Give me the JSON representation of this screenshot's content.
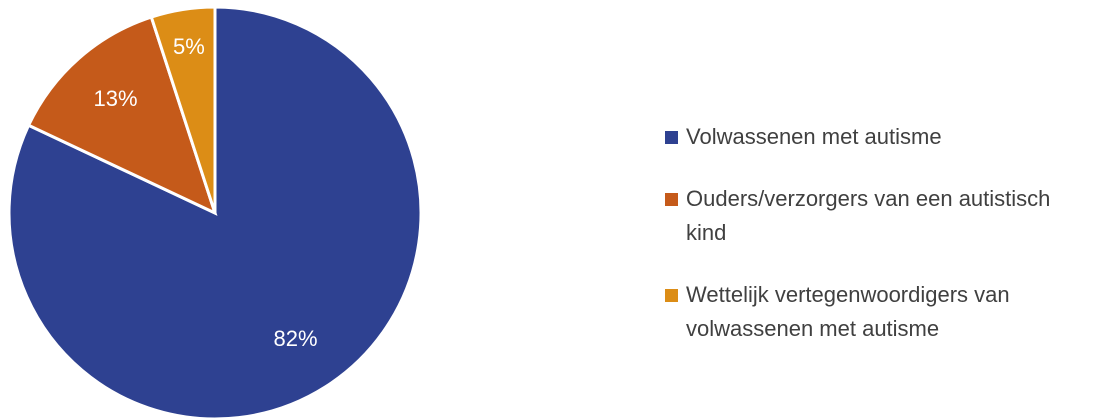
{
  "chart_data": {
    "type": "pie",
    "categories": [
      "Volwassenen met autisme",
      "Ouders/verzorgers van een autistisch kind",
      "Wettelijk vertegenwoordigers van volwassenen met autisme"
    ],
    "values": [
      82,
      13,
      5
    ],
    "value_labels": [
      "82%",
      "13%",
      "5%"
    ],
    "colors": [
      "#2e4191",
      "#c55a1a",
      "#dc8d16"
    ],
    "legend": "right"
  }
}
